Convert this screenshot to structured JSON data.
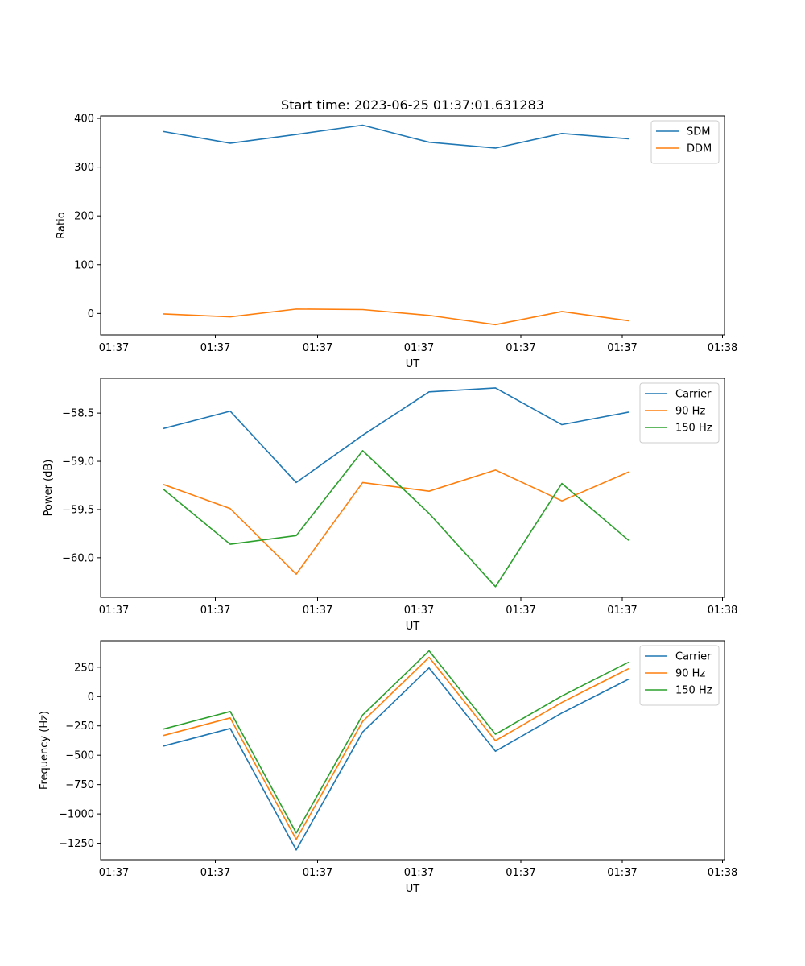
{
  "title": "Start time: 2023-06-25 01:37:01.631283",
  "chart_data": [
    {
      "type": "line",
      "ylabel": "Ratio",
      "xlabel": "UT",
      "x_ticks": [
        "01:37",
        "01:37",
        "01:37",
        "01:37",
        "01:37",
        "01:37",
        "01:38"
      ],
      "y_ticks": [
        "0",
        "100",
        "200",
        "300",
        "400"
      ],
      "ylim": [
        -44,
        405
      ],
      "legend": "upper right",
      "grid": false,
      "series": [
        {
          "name": "SDM",
          "color": "#1f77b4",
          "values": [
            373,
            349,
            367,
            386,
            351,
            339,
            369,
            358
          ]
        },
        {
          "name": "DDM",
          "color": "#ff7f0e",
          "values": [
            -1,
            -7,
            9,
            8,
            -4,
            -23,
            4,
            -15
          ]
        }
      ]
    },
    {
      "type": "line",
      "ylabel": "Power (dB)",
      "xlabel": "UT",
      "x_ticks": [
        "01:37",
        "01:37",
        "01:37",
        "01:37",
        "01:37",
        "01:37",
        "01:38"
      ],
      "y_ticks": [
        "−58.5",
        "−59.0",
        "−59.5",
        "−60.0"
      ],
      "ylim": [
        -60.41,
        -58.14
      ],
      "legend": "upper right",
      "grid": false,
      "series": [
        {
          "name": "Carrier",
          "color": "#1f77b4",
          "values": [
            -58.66,
            -58.48,
            -59.22,
            -58.73,
            -58.28,
            -58.24,
            -58.62,
            -58.49
          ]
        },
        {
          "name": "90 Hz",
          "color": "#ff7f0e",
          "values": [
            -59.24,
            -59.49,
            -60.17,
            -59.22,
            -59.31,
            -59.09,
            -59.41,
            -59.11
          ]
        },
        {
          "name": "150 Hz",
          "color": "#2ca02c",
          "values": [
            -59.29,
            -59.86,
            -59.77,
            -58.89,
            -59.54,
            -60.3,
            -59.23,
            -59.82
          ]
        }
      ]
    },
    {
      "type": "line",
      "ylabel": "Frequency (Hz)",
      "xlabel": "UT",
      "x_ticks": [
        "01:37",
        "01:37",
        "01:37",
        "01:37",
        "01:37",
        "01:37",
        "01:38"
      ],
      "y_ticks": [
        "250",
        "0",
        "−250",
        "−500",
        "−750",
        "−1000",
        "−1250"
      ],
      "ylim": [
        -1390,
        475
      ],
      "legend": "upper right",
      "grid": false,
      "series": [
        {
          "name": "Carrier",
          "color": "#1f77b4",
          "values": [
            -422,
            -272,
            -1307,
            -302,
            244,
            -466,
            -140,
            148
          ]
        },
        {
          "name": "90 Hz",
          "color": "#ff7f0e",
          "values": [
            -332,
            -182,
            -1217,
            -212,
            334,
            -376,
            -50,
            238
          ]
        },
        {
          "name": "150 Hz",
          "color": "#2ca02c",
          "values": [
            -277,
            -127,
            -1162,
            -157,
            389,
            -321,
            5,
            293
          ]
        }
      ]
    }
  ]
}
